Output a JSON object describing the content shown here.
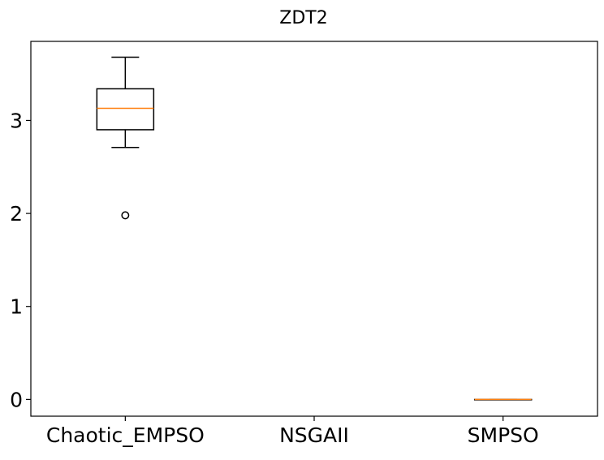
{
  "chart_data": {
    "type": "box",
    "title": "ZDT2",
    "xlabel": "",
    "ylabel": "",
    "categories": [
      "Chaotic_EMPSO",
      "NSGAII",
      "SMPSO"
    ],
    "ylim": [
      -0.18,
      3.85
    ],
    "yticks": [
      0,
      1,
      2,
      3
    ],
    "ytick_labels": [
      "0",
      "1",
      "2",
      "3"
    ],
    "grid": false,
    "legend": "none",
    "colors": {
      "box": "#000000",
      "median": "#ff7f0e",
      "axes": "#000000"
    },
    "boxes": [
      {
        "name": "Chaotic_EMPSO",
        "whislo": 2.71,
        "q1": 2.9,
        "median": 3.13,
        "q3": 3.34,
        "whishi": 3.68,
        "fliers": [
          1.98
        ]
      },
      {
        "name": "NSGAII",
        "whislo": null,
        "q1": null,
        "median": null,
        "q3": null,
        "whishi": null,
        "fliers": []
      },
      {
        "name": "SMPSO",
        "whislo": 0.0,
        "q1": 0.0,
        "median": 0.0,
        "q3": 0.0,
        "whishi": 0.0,
        "fliers": []
      }
    ]
  }
}
